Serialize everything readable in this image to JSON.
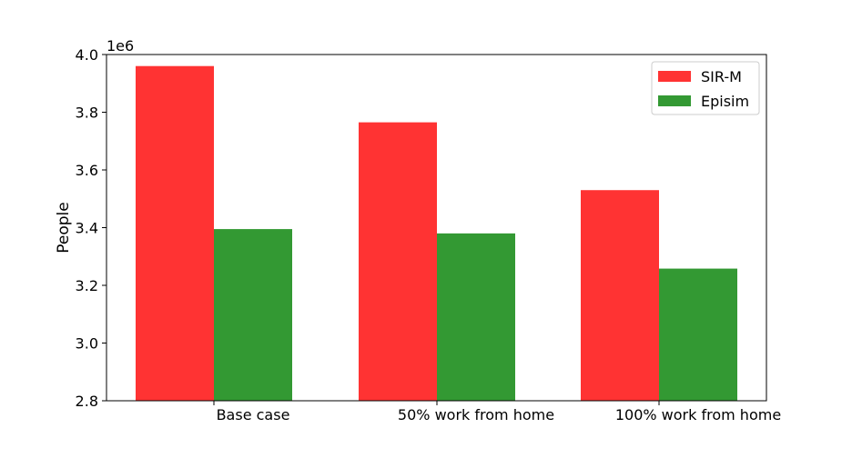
{
  "chart_data": {
    "type": "bar",
    "categories": [
      "Base case",
      "50% work from home",
      "100% work from home"
    ],
    "series": [
      {
        "name": "SIR-M",
        "values": [
          3960000,
          3765000,
          3530000
        ],
        "color": "#ff3333"
      },
      {
        "name": "Episim",
        "values": [
          3395000,
          3380000,
          3258000
        ],
        "color": "#339933"
      }
    ],
    "ylabel": "People",
    "xlabel": "",
    "ylim": [
      2800000,
      4000000
    ],
    "yticks": [
      "2.8",
      "3.0",
      "3.2",
      "3.4",
      "3.6",
      "3.8",
      "4.0"
    ],
    "y_multiplier_label": "1e6",
    "legend_position": "top-right",
    "grid": false
  }
}
